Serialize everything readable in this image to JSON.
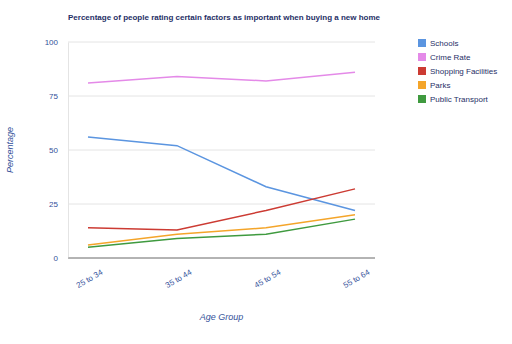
{
  "chart_data": {
    "type": "line",
    "title": "Percentage of people rating certain factors as important when buying a new home",
    "x_label": "Age Group",
    "y_label": "Percentage",
    "categories": [
      "25 to 34",
      "35 to 44",
      "45 to 54",
      "55 to 64"
    ],
    "series": [
      {
        "name": "Schools",
        "color": "#5b95e0",
        "values": [
          56,
          52,
          33,
          22
        ]
      },
      {
        "name": "Crime Rate",
        "color": "#e48ae8",
        "values": [
          81,
          84,
          82,
          86
        ]
      },
      {
        "name": "Shopping Facilities",
        "color": "#cc3b33",
        "values": [
          14,
          13,
          22,
          32
        ]
      },
      {
        "name": "Parks",
        "color": "#f4a52a",
        "values": [
          6,
          11,
          14,
          20
        ]
      },
      {
        "name": "Public Transport",
        "color": "#3f9a3f",
        "values": [
          5,
          9,
          11,
          18
        ]
      }
    ],
    "ylim": [
      0,
      100
    ],
    "yticks": [
      0,
      25,
      50,
      75,
      100
    ],
    "grid": true,
    "legend": "right"
  }
}
